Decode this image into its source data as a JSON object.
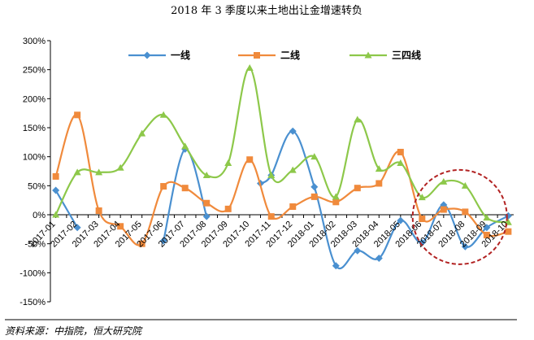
{
  "chart_data": {
    "type": "line",
    "title": "2018 年 3 季度以来土地出让金增速转负",
    "xlabel": "",
    "ylabel": "",
    "ylim": [
      -150,
      300
    ],
    "y_ticks": [
      "300%",
      "250%",
      "200%",
      "150%",
      "100%",
      "50%",
      "0%",
      "-50%",
      "-100%",
      "-150%"
    ],
    "y_tick_values": [
      300,
      250,
      200,
      150,
      100,
      50,
      0,
      -50,
      -100,
      -150
    ],
    "x_tick_labels": [
      "2017-01",
      "2017-02",
      "2017-03",
      "2017-04",
      "2017-05",
      "2017-06",
      "2017-07",
      "2017-08",
      "2017-09",
      "2017-10",
      "2017-11",
      "2017-12",
      "2018-01",
      "2018-02",
      "2018-03",
      "2018-04",
      "2018-05",
      "2018-06",
      "2018-07",
      "2018-08",
      "2018-09",
      "2018-10"
    ],
    "x_positions": [
      0,
      2,
      4,
      6,
      8,
      10,
      12,
      14,
      16,
      18,
      20,
      22,
      24,
      26,
      28,
      30,
      32,
      34,
      36,
      38,
      40,
      42
    ],
    "x_range": [
      -0.5,
      42.5
    ],
    "grid": false,
    "legend_position": "top",
    "series": [
      {
        "name": "一线",
        "color": "#4a90d0",
        "marker": "diamond",
        "points": [
          [
            0,
            42
          ],
          [
            2,
            -22
          ],
          [
            null,
            null
          ],
          [
            10,
            -45
          ],
          [
            12,
            113
          ],
          [
            14,
            -3
          ],
          [
            null,
            null
          ],
          [
            19,
            54
          ],
          [
            20,
            68
          ],
          [
            22,
            144
          ],
          [
            24,
            48
          ],
          [
            26,
            -88
          ],
          [
            28,
            -62
          ],
          [
            30,
            -75
          ],
          [
            32,
            -10
          ],
          [
            34,
            -48
          ],
          [
            36,
            17
          ],
          [
            38,
            -55
          ],
          [
            40,
            -22
          ],
          [
            42,
            -2
          ]
        ]
      },
      {
        "name": "二线",
        "color": "#f08a3c",
        "marker": "square",
        "points": [
          [
            0,
            66
          ],
          [
            2,
            172
          ],
          [
            4,
            7
          ],
          [
            6,
            -20
          ],
          [
            8,
            -50
          ],
          [
            10,
            49
          ],
          [
            12,
            46
          ],
          [
            14,
            20
          ],
          [
            16,
            10
          ],
          [
            18,
            95
          ],
          [
            20,
            -3
          ],
          [
            22,
            14
          ],
          [
            24,
            31
          ],
          [
            26,
            22
          ],
          [
            28,
            46
          ],
          [
            30,
            54
          ],
          [
            32,
            108
          ],
          [
            34,
            -7
          ],
          [
            36,
            9
          ],
          [
            38,
            5
          ],
          [
            40,
            -35
          ],
          [
            42,
            -29
          ]
        ]
      },
      {
        "name": "三四线",
        "color": "#8dc84a",
        "marker": "triangle",
        "points": [
          [
            0,
            0
          ],
          [
            2,
            73
          ],
          [
            4,
            73
          ],
          [
            6,
            81
          ],
          [
            8,
            140
          ],
          [
            10,
            172
          ],
          [
            12,
            118
          ],
          [
            14,
            68
          ],
          [
            16,
            89
          ],
          [
            18,
            253
          ],
          [
            20,
            68
          ],
          [
            22,
            77
          ],
          [
            24,
            100
          ],
          [
            26,
            31
          ],
          [
            28,
            164
          ],
          [
            30,
            79
          ],
          [
            32,
            89
          ],
          [
            34,
            30
          ],
          [
            36,
            57
          ],
          [
            38,
            50
          ],
          [
            40,
            -5
          ],
          [
            42,
            -13
          ]
        ]
      }
    ],
    "annotation": {
      "type": "dashed-circle",
      "color": "#b22222",
      "center_x": 37.5,
      "center_y": -4
    }
  },
  "source": "资料来源：中指院，恒大研究院"
}
